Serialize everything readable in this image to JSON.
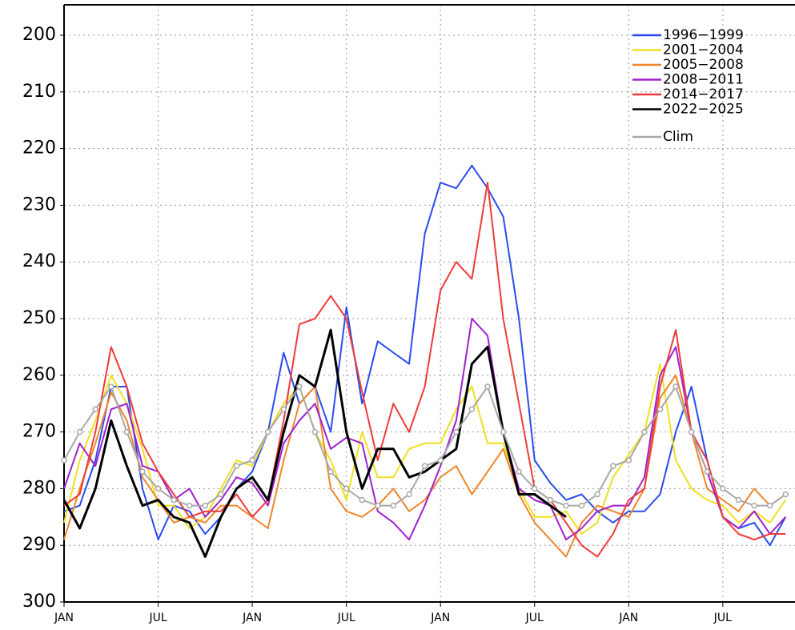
{
  "chart_data": {
    "type": "line",
    "x": [
      0,
      1,
      2,
      3,
      4,
      5,
      6,
      7,
      8,
      9,
      10,
      11,
      12,
      13,
      14,
      15,
      16,
      17,
      18,
      19,
      20,
      21,
      22,
      23,
      24,
      25,
      26,
      27,
      28,
      29,
      30,
      31,
      32,
      33,
      34,
      35,
      36,
      37,
      38,
      39,
      40,
      41,
      42,
      43,
      44,
      45,
      46
    ],
    "xlim": [
      0,
      46.6
    ],
    "xticks": [
      {
        "value": 0,
        "label": "JAN"
      },
      {
        "value": 6,
        "label": "JUL"
      },
      {
        "value": 12,
        "label": "JAN"
      },
      {
        "value": 18,
        "label": "JUL"
      },
      {
        "value": 24,
        "label": "JAN"
      },
      {
        "value": 30,
        "label": "JUL"
      },
      {
        "value": 36,
        "label": "JAN"
      },
      {
        "value": 42,
        "label": "JUL"
      }
    ],
    "ylim": [
      300,
      200
    ],
    "yticks": [
      200,
      210,
      220,
      230,
      240,
      250,
      260,
      270,
      280,
      290,
      300
    ],
    "grid": true,
    "legend": "upper right",
    "series": [
      {
        "name": "1996−1999",
        "color": "#2a4bf0",
        "values": [
          284,
          283,
          275,
          262,
          262,
          280,
          289,
          283,
          284,
          288,
          285,
          280,
          277,
          270,
          256,
          265,
          262,
          270,
          248,
          265,
          254,
          256,
          258,
          235,
          226,
          227,
          223,
          227,
          232,
          250,
          275,
          279,
          282,
          281,
          284,
          286,
          284,
          284,
          281,
          270,
          262,
          275,
          285,
          287,
          286,
          290,
          285
        ]
      },
      {
        "name": "2001−2004",
        "color": "#f0e020",
        "values": [
          286,
          275,
          268,
          260,
          265,
          273,
          283,
          283,
          287,
          285,
          280,
          275,
          276,
          270,
          265,
          262,
          270,
          275,
          282,
          270,
          278,
          278,
          273,
          272,
          272,
          266,
          262,
          272,
          272,
          280,
          285,
          285,
          284,
          288,
          286,
          278,
          274,
          270,
          258,
          275,
          280,
          282,
          283,
          286,
          284,
          286,
          282
        ]
      },
      {
        "name": "2005−2008",
        "color": "#f0862a",
        "values": [
          289,
          280,
          272,
          263,
          268,
          278,
          282,
          286,
          285,
          286,
          283,
          283,
          285,
          287,
          275,
          265,
          262,
          280,
          284,
          285,
          283,
          280,
          284,
          282,
          278,
          276,
          281,
          277,
          273,
          281,
          286,
          289,
          292,
          286,
          283,
          284,
          285,
          280,
          264,
          260,
          270,
          280,
          282,
          284,
          280,
          283,
          281
        ]
      },
      {
        "name": "2008−2011",
        "color": "#a020d0",
        "values": [
          280,
          272,
          276,
          266,
          265,
          276,
          277,
          282,
          280,
          285,
          282,
          278,
          279,
          283,
          272,
          268,
          265,
          273,
          271,
          272,
          284,
          286,
          289,
          283,
          276,
          268,
          250,
          253,
          270,
          280,
          282,
          283,
          289,
          287,
          284,
          283,
          283,
          278,
          260,
          255,
          270,
          277,
          285,
          287,
          284,
          288,
          285
        ]
      },
      {
        "name": "2014−2017",
        "color": "#f03a3a",
        "values": [
          283,
          281,
          270,
          255,
          262,
          272,
          277,
          281,
          285,
          284,
          284,
          281,
          285,
          282,
          268,
          251,
          250,
          246,
          250,
          263,
          275,
          265,
          270,
          262,
          245,
          240,
          243,
          226,
          250,
          265,
          280,
          282,
          286,
          290,
          292,
          288,
          282,
          280,
          262,
          252,
          270,
          275,
          285,
          288,
          289,
          288,
          288
        ]
      },
      {
        "name": "2022−2025",
        "color": "#000000",
        "values": [
          282,
          287,
          280,
          268,
          276,
          283,
          282,
          285,
          286,
          292,
          285,
          280,
          278,
          282,
          270,
          260,
          262,
          252,
          270,
          280,
          273,
          273,
          278,
          277,
          275,
          273,
          258,
          255,
          270,
          281,
          281,
          283,
          285,
          null,
          null,
          null,
          null,
          null,
          null,
          null,
          null,
          null,
          null,
          null,
          null,
          null,
          null
        ]
      },
      {
        "name": "Clim",
        "color": "#a8a8a8",
        "values": [
          275,
          270,
          266,
          262,
          270,
          277,
          280,
          282,
          283,
          283,
          281,
          276,
          275,
          270,
          266,
          262,
          270,
          277,
          280,
          282,
          283,
          283,
          281,
          276,
          275,
          270,
          266,
          262,
          270,
          277,
          280,
          282,
          283,
          283,
          281,
          276,
          275,
          270,
          266,
          262,
          270,
          277,
          280,
          282,
          283,
          283,
          281
        ]
      }
    ]
  }
}
